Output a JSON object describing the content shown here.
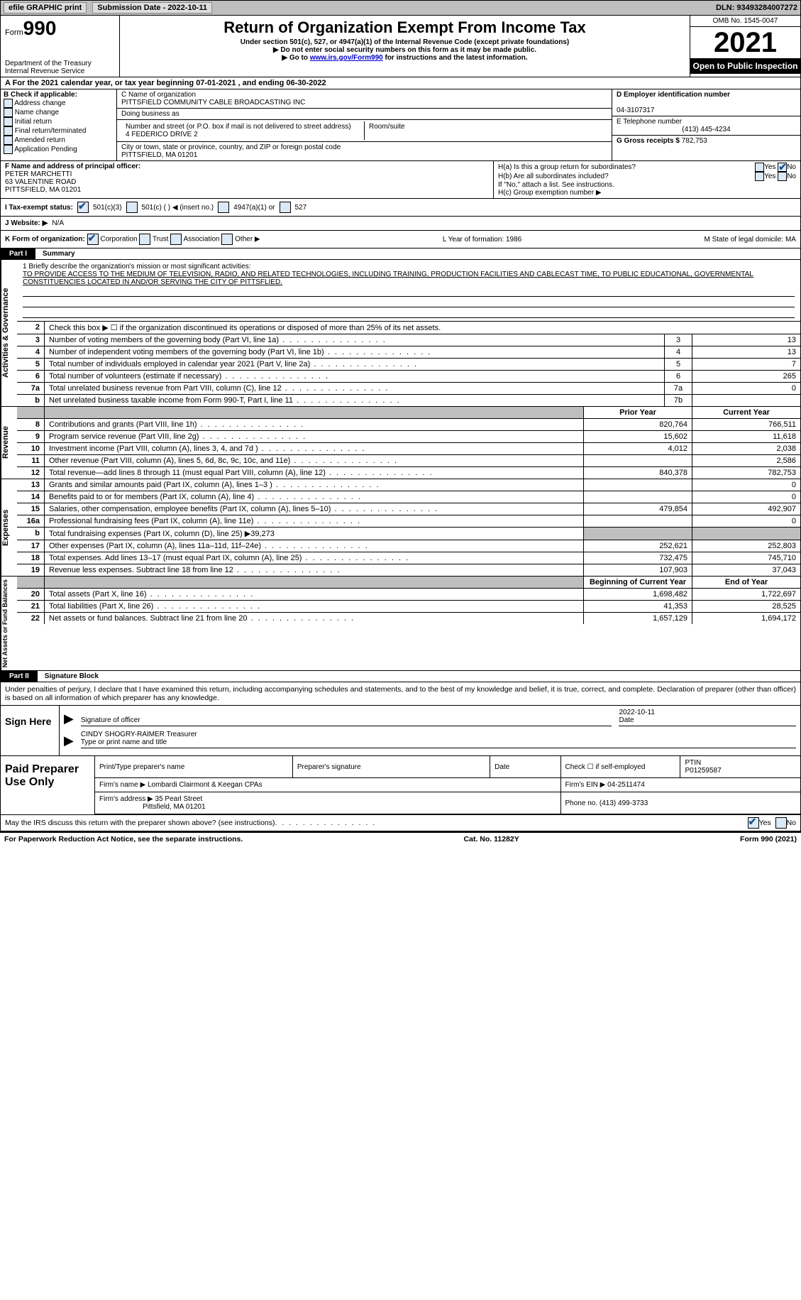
{
  "topbar": {
    "efile": "efile GRAPHIC print",
    "submission": "Submission Date - 2022-10-11",
    "dln": "DLN: 93493284007272"
  },
  "header": {
    "form_label": "Form",
    "form_num": "990",
    "dept": "Department of the Treasury",
    "irs": "Internal Revenue Service",
    "title": "Return of Organization Exempt From Income Tax",
    "subtitle": "Under section 501(c), 527, or 4947(a)(1) of the Internal Revenue Code (except private foundations)",
    "arrow1": "▶ Do not enter social security numbers on this form as it may be made public.",
    "arrow2_pre": "▶ Go to ",
    "arrow2_link": "www.irs.gov/Form990",
    "arrow2_post": " for instructions and the latest information.",
    "omb": "OMB No. 1545-0047",
    "year": "2021",
    "opi": "Open to Public Inspection"
  },
  "row_a": "A For the 2021 calendar year, or tax year beginning 07-01-2021    , and ending 06-30-2022",
  "b": {
    "label": "B Check if applicable:",
    "opts": [
      "Address change",
      "Name change",
      "Initial return",
      "Final return/terminated",
      "Amended return",
      "Application Pending"
    ]
  },
  "c": {
    "name_label": "C Name of organization",
    "name": "PITTSFIELD COMMUNITY CABLE BROADCASTING INC",
    "dba_label": "Doing business as",
    "addr_label": "Number and street (or P.O. box if mail is not delivered to street address)",
    "room_label": "Room/suite",
    "addr": "4 FEDERICO DRIVE 2",
    "city_label": "City or town, state or province, country, and ZIP or foreign postal code",
    "city": "PITTSFIELD, MA  01201"
  },
  "d": {
    "label": "D Employer identification number",
    "val": "04-3107317"
  },
  "e": {
    "label": "E Telephone number",
    "val": "(413) 445-4234"
  },
  "g": {
    "label": "G Gross receipts $",
    "val": "782,753"
  },
  "f": {
    "label": "F Name and address of principal officer:",
    "name": "PETER MARCHETTI",
    "addr1": "63 VALENTINE ROAD",
    "addr2": "PITTSFIELD, MA  01201"
  },
  "h": {
    "a": "H(a)  Is this a group return for subordinates?",
    "b": "H(b)  Are all subordinates included?",
    "b_note": "If \"No,\" attach a list. See instructions.",
    "c": "H(c)  Group exemption number ▶"
  },
  "i": {
    "label": "I   Tax-exempt status:",
    "o1": "501(c)(3)",
    "o2": "501(c) (  ) ◀ (insert no.)",
    "o3": "4947(a)(1) or",
    "o4": "527"
  },
  "j": {
    "label": "J   Website: ▶",
    "val": "N/A"
  },
  "k": {
    "label": "K Form of organization:",
    "o1": "Corporation",
    "o2": "Trust",
    "o3": "Association",
    "o4": "Other ▶",
    "l": "L Year of formation: 1986",
    "m": "M State of legal domicile: MA"
  },
  "part1": {
    "num": "Part I",
    "title": "Summary"
  },
  "mission": {
    "q": "1   Briefly describe the organization's mission or most significant activities:",
    "text": "TO PROVIDE ACCESS TO THE MEDIUM OF TELEVISION, RADIO, AND RELATED TECHNOLOGIES, INCLUDING TRAINING, PRODUCTION FACILITIES AND CABLECAST TIME, TO PUBLIC EDUCATIONAL, GOVERNMENTAL CONSTITUENCIES LOCATED IN AND/OR SERVING THE CITY OF PITTSFLIED."
  },
  "lines_gov": [
    {
      "n": "2",
      "t": "Check this box ▶ ☐ if the organization discontinued its operations or disposed of more than 25% of its net assets."
    },
    {
      "n": "3",
      "t": "Number of voting members of the governing body (Part VI, line 1a)",
      "box": "3",
      "v": "13"
    },
    {
      "n": "4",
      "t": "Number of independent voting members of the governing body (Part VI, line 1b)",
      "box": "4",
      "v": "13"
    },
    {
      "n": "5",
      "t": "Total number of individuals employed in calendar year 2021 (Part V, line 2a)",
      "box": "5",
      "v": "7"
    },
    {
      "n": "6",
      "t": "Total number of volunteers (estimate if necessary)",
      "box": "6",
      "v": "265"
    },
    {
      "n": "7a",
      "t": "Total unrelated business revenue from Part VIII, column (C), line 12",
      "box": "7a",
      "v": "0"
    },
    {
      "n": "b",
      "t": "Net unrelated business taxable income from Form 990-T, Part I, line 11",
      "box": "7b",
      "v": ""
    }
  ],
  "col_hdr": {
    "py": "Prior Year",
    "cy": "Current Year"
  },
  "lines_rev": [
    {
      "n": "8",
      "t": "Contributions and grants (Part VIII, line 1h)",
      "py": "820,764",
      "cy": "766,511"
    },
    {
      "n": "9",
      "t": "Program service revenue (Part VIII, line 2g)",
      "py": "15,602",
      "cy": "11,618"
    },
    {
      "n": "10",
      "t": "Investment income (Part VIII, column (A), lines 3, 4, and 7d )",
      "py": "4,012",
      "cy": "2,038"
    },
    {
      "n": "11",
      "t": "Other revenue (Part VIII, column (A), lines 5, 6d, 8c, 9c, 10c, and 11e)",
      "py": "",
      "cy": "2,586"
    },
    {
      "n": "12",
      "t": "Total revenue—add lines 8 through 11 (must equal Part VIII, column (A), line 12)",
      "py": "840,378",
      "cy": "782,753"
    }
  ],
  "lines_exp": [
    {
      "n": "13",
      "t": "Grants and similar amounts paid (Part IX, column (A), lines 1–3 )",
      "py": "",
      "cy": "0"
    },
    {
      "n": "14",
      "t": "Benefits paid to or for members (Part IX, column (A), line 4)",
      "py": "",
      "cy": "0"
    },
    {
      "n": "15",
      "t": "Salaries, other compensation, employee benefits (Part IX, column (A), lines 5–10)",
      "py": "479,854",
      "cy": "492,907"
    },
    {
      "n": "16a",
      "t": "Professional fundraising fees (Part IX, column (A), line 11e)",
      "py": "",
      "cy": "0"
    },
    {
      "n": "b",
      "t": "Total fundraising expenses (Part IX, column (D), line 25) ▶39,273",
      "grey": true
    },
    {
      "n": "17",
      "t": "Other expenses (Part IX, column (A), lines 11a–11d, 11f–24e)",
      "py": "252,621",
      "cy": "252,803"
    },
    {
      "n": "18",
      "t": "Total expenses. Add lines 13–17 (must equal Part IX, column (A), line 25)",
      "py": "732,475",
      "cy": "745,710"
    },
    {
      "n": "19",
      "t": "Revenue less expenses. Subtract line 18 from line 12",
      "py": "107,903",
      "cy": "37,043"
    }
  ],
  "col_hdr2": {
    "py": "Beginning of Current Year",
    "cy": "End of Year"
  },
  "lines_net": [
    {
      "n": "20",
      "t": "Total assets (Part X, line 16)",
      "py": "1,698,482",
      "cy": "1,722,697"
    },
    {
      "n": "21",
      "t": "Total liabilities (Part X, line 26)",
      "py": "41,353",
      "cy": "28,525"
    },
    {
      "n": "22",
      "t": "Net assets or fund balances. Subtract line 21 from line 20",
      "py": "1,657,129",
      "cy": "1,694,172"
    }
  ],
  "vtabs": {
    "gov": "Activities & Governance",
    "rev": "Revenue",
    "exp": "Expenses",
    "net": "Net Assets or Fund Balances"
  },
  "part2": {
    "num": "Part II",
    "title": "Signature Block"
  },
  "sig_decl": "Under penalties of perjury, I declare that I have examined this return, including accompanying schedules and statements, and to the best of my knowledge and belief, it is true, correct, and complete. Declaration of preparer (other than officer) is based on all information of which preparer has any knowledge.",
  "sign": {
    "label": "Sign Here",
    "date": "2022-10-11",
    "sig_of": "Signature of officer",
    "date_lab": "Date",
    "name": "CINDY SHOGRY-RAIMER  Treasurer",
    "name_lab": "Type or print name and title"
  },
  "prep": {
    "label": "Paid Preparer Use Only",
    "h1": "Print/Type preparer's name",
    "h2": "Preparer's signature",
    "h3": "Date",
    "h4a": "Check ☐ if self-employed",
    "h4b": "PTIN",
    "ptin": "P01259587",
    "firm_name_l": "Firm's name    ▶",
    "firm_name": "Lombardi Clairmont & Keegan CPAs",
    "firm_ein_l": "Firm's EIN ▶",
    "firm_ein": "04-2511474",
    "firm_addr_l": "Firm's address ▶",
    "firm_addr1": "35 Pearl Street",
    "firm_addr2": "Pittsfield, MA  01201",
    "phone_l": "Phone no.",
    "phone": "(413) 499-3733"
  },
  "footer": {
    "discuss": "May the IRS discuss this return with the preparer shown above? (see instructions)",
    "yes": "Yes",
    "no": "No",
    "pra": "For Paperwork Reduction Act Notice, see the separate instructions.",
    "cat": "Cat. No. 11282Y",
    "form": "Form 990 (2021)"
  }
}
